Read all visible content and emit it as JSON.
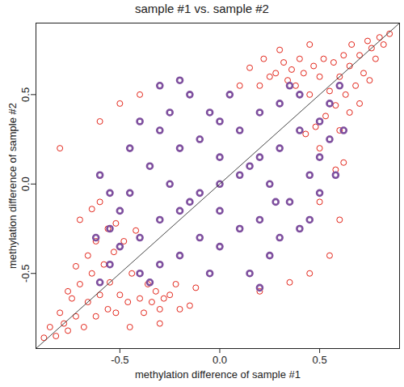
{
  "chart_data": {
    "type": "scatter",
    "title": "sample #1 vs. sample #2",
    "x_label": "methylation difference of sample #1",
    "y_label": "methylation difference of sample #2",
    "xlim": [
      -0.92,
      0.9
    ],
    "ylim": [
      -0.92,
      0.9
    ],
    "xticks": [
      -0.5,
      {
        "value": 0,
        "label": "0.0"
      },
      0.5
    ],
    "yticks": [
      -0.5,
      {
        "value": 0,
        "label": "0.0"
      },
      0.5
    ],
    "grid": false,
    "series": [
      {
        "color": "#e3261b",
        "marker": "open circle",
        "values": [
          [
            0.85,
            0.84
          ],
          [
            0.82,
            0.78
          ],
          [
            0.8,
            0.82
          ],
          [
            0.78,
            0.7
          ],
          [
            0.76,
            0.76
          ],
          [
            0.74,
            0.8
          ],
          [
            0.72,
            0.62
          ],
          [
            0.7,
            0.72
          ],
          [
            0.68,
            0.55
          ],
          [
            0.66,
            0.78
          ],
          [
            0.65,
            0.66
          ],
          [
            0.63,
            0.5
          ],
          [
            0.62,
            0.72
          ],
          [
            0.6,
            0.6
          ],
          [
            0.58,
            0.44
          ],
          [
            0.57,
            0.68
          ],
          [
            0.55,
            0.52
          ],
          [
            0.53,
            0.38
          ],
          [
            0.52,
            0.7
          ],
          [
            0.5,
            0.6
          ],
          [
            0.48,
            0.32
          ],
          [
            0.47,
            0.66
          ],
          [
            0.45,
            0.5
          ],
          [
            0.43,
            0.28
          ],
          [
            0.42,
            0.62
          ],
          [
            0.4,
            0.7
          ],
          [
            0.38,
            0.55
          ],
          [
            0.36,
            0.64
          ],
          [
            0.34,
            0.58
          ],
          [
            0.32,
            0.68
          ],
          [
            0.6,
            0.3
          ],
          [
            0.55,
            0.25
          ],
          [
            0.65,
            0.4
          ],
          [
            0.7,
            0.45
          ],
          [
            0.75,
            0.58
          ],
          [
            0.28,
            0.62
          ],
          [
            0.25,
            0.6
          ],
          [
            0.22,
            0.7
          ],
          [
            0.2,
            0.55
          ],
          [
            0.5,
            0.2
          ],
          [
            0.62,
            0.12
          ],
          [
            0.58,
            0.08
          ],
          [
            0.3,
            0.75
          ],
          [
            0.45,
            0.78
          ],
          [
            0.1,
            0.55
          ],
          [
            0.15,
            0.65
          ],
          [
            -0.8,
            0.2
          ],
          [
            -0.6,
            0.35
          ],
          [
            -0.5,
            0.45
          ],
          [
            -0.3,
            0.55
          ],
          [
            -0.4,
            0.5
          ],
          [
            -0.88,
            -0.86
          ],
          [
            -0.85,
            -0.8
          ],
          [
            -0.82,
            -0.85
          ],
          [
            -0.8,
            -0.72
          ],
          [
            -0.78,
            -0.78
          ],
          [
            -0.76,
            -0.82
          ],
          [
            -0.74,
            -0.64
          ],
          [
            -0.72,
            -0.74
          ],
          [
            -0.7,
            -0.56
          ],
          [
            -0.68,
            -0.8
          ],
          [
            -0.66,
            -0.66
          ],
          [
            -0.64,
            -0.5
          ],
          [
            -0.62,
            -0.74
          ],
          [
            -0.6,
            -0.62
          ],
          [
            -0.58,
            -0.45
          ],
          [
            -0.56,
            -0.7
          ],
          [
            -0.55,
            -0.55
          ],
          [
            -0.53,
            -0.38
          ],
          [
            -0.52,
            -0.72
          ],
          [
            -0.5,
            -0.62
          ],
          [
            -0.48,
            -0.32
          ],
          [
            -0.46,
            -0.66
          ],
          [
            -0.44,
            -0.5
          ],
          [
            -0.42,
            -0.26
          ],
          [
            -0.4,
            -0.64
          ],
          [
            -0.38,
            -0.72
          ],
          [
            -0.36,
            -0.56
          ],
          [
            -0.34,
            -0.66
          ],
          [
            -0.32,
            -0.6
          ],
          [
            -0.3,
            -0.7
          ],
          [
            -0.62,
            -0.32
          ],
          [
            -0.56,
            -0.25
          ],
          [
            -0.66,
            -0.4
          ],
          [
            -0.72,
            -0.46
          ],
          [
            -0.76,
            -0.6
          ],
          [
            -0.28,
            -0.64
          ],
          [
            -0.25,
            -0.62
          ],
          [
            -0.2,
            -0.7
          ],
          [
            -0.22,
            -0.56
          ],
          [
            -0.52,
            -0.22
          ],
          [
            -0.64,
            -0.14
          ],
          [
            -0.6,
            -0.1
          ],
          [
            -0.3,
            -0.78
          ],
          [
            -0.45,
            -0.8
          ],
          [
            -0.12,
            -0.58
          ],
          [
            -0.15,
            -0.68
          ],
          [
            -0.7,
            -0.2
          ],
          [
            0.55,
            -0.4
          ],
          [
            0.35,
            -0.55
          ],
          [
            0.2,
            -0.6
          ],
          [
            0.6,
            -0.2
          ],
          [
            0.45,
            -0.5
          ],
          [
            0.5,
            -0.1
          ]
        ]
      },
      {
        "color": "#7e4f9e",
        "marker": "open circle",
        "values": [
          [
            0,
            0
          ],
          [
            0.1,
            0.05
          ],
          [
            -0.1,
            -0.05
          ],
          [
            0.2,
            0.15
          ],
          [
            -0.2,
            -0.15
          ],
          [
            0.3,
            0.2
          ],
          [
            -0.3,
            -0.2
          ],
          [
            0.4,
            0.3
          ],
          [
            -0.4,
            -0.3
          ],
          [
            0.5,
            0.35
          ],
          [
            -0.5,
            -0.35
          ],
          [
            0.55,
            0.45
          ],
          [
            -0.55,
            -0.45
          ],
          [
            0.1,
            0.3
          ],
          [
            -0.1,
            -0.3
          ],
          [
            0.2,
            0.4
          ],
          [
            -0.2,
            -0.4
          ],
          [
            0.3,
            0.45
          ],
          [
            -0.3,
            -0.45
          ],
          [
            0,
            0.35
          ],
          [
            0,
            -0.35
          ],
          [
            -0.1,
            0.25
          ],
          [
            0.1,
            -0.25
          ],
          [
            -0.2,
            0.2
          ],
          [
            0.2,
            -0.2
          ],
          [
            -0.3,
            0.3
          ],
          [
            0.3,
            -0.3
          ],
          [
            -0.35,
            0.1
          ],
          [
            0.35,
            -0.1
          ],
          [
            -0.25,
            0.4
          ],
          [
            0.25,
            -0.4
          ],
          [
            -0.4,
            0.35
          ],
          [
            0.4,
            -0.25
          ],
          [
            -0.15,
            0.5
          ],
          [
            0.15,
            -0.5
          ],
          [
            0.05,
            0.5
          ],
          [
            -0.05,
            -0.5
          ],
          [
            0.45,
            0.05
          ],
          [
            -0.45,
            -0.05
          ],
          [
            0.5,
            0.15
          ],
          [
            -0.5,
            -0.15
          ],
          [
            0.55,
            0.25
          ],
          [
            -0.55,
            -0.25
          ],
          [
            0.6,
            0.55
          ],
          [
            -0.6,
            -0.55
          ],
          [
            0.35,
            0.55
          ],
          [
            -0.35,
            -0.55
          ],
          [
            -0.45,
            0.2
          ],
          [
            0.45,
            -0.2
          ],
          [
            0.15,
            0.1
          ],
          [
            -0.15,
            -0.1
          ],
          [
            0.25,
            0
          ],
          [
            -0.25,
            0
          ],
          [
            0,
            0.15
          ],
          [
            0,
            -0.15
          ],
          [
            0.4,
            0.5
          ],
          [
            -0.4,
            -0.5
          ],
          [
            -0.3,
            0.55
          ],
          [
            0.5,
            -0.05
          ],
          [
            -0.55,
            -0.05
          ],
          [
            0.28,
            -0.1
          ],
          [
            -0.05,
            0.4
          ],
          [
            0.62,
            0.3
          ],
          [
            -0.62,
            -0.3
          ],
          [
            0.58,
            0.05
          ],
          [
            -0.6,
            0.05
          ],
          [
            -0.2,
            0.58
          ],
          [
            0.2,
            -0.58
          ]
        ]
      }
    ]
  }
}
